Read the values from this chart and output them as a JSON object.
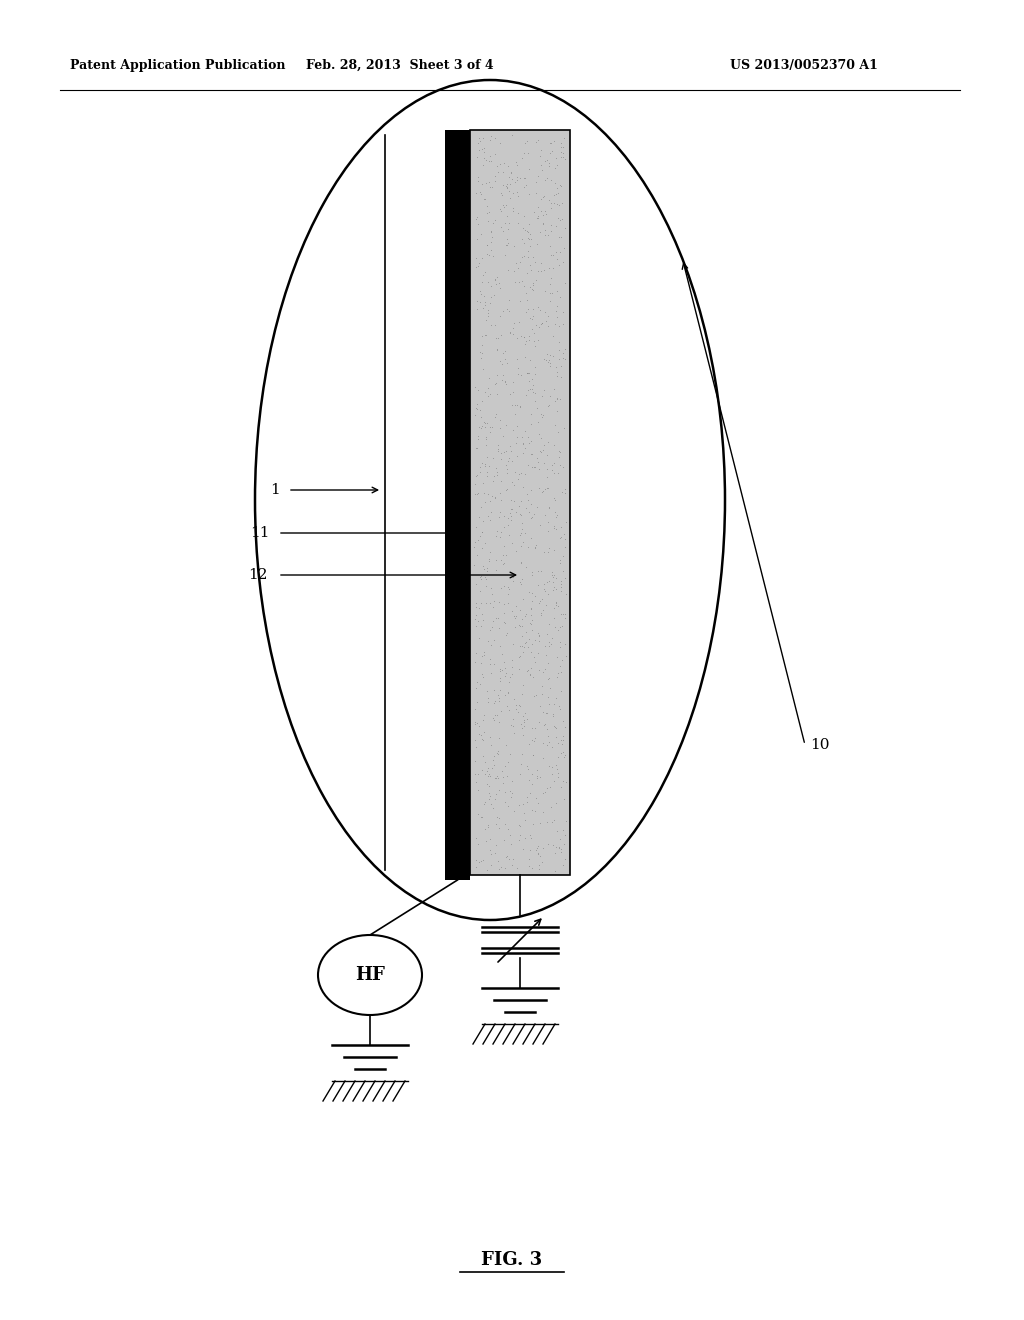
{
  "title_left": "Patent Application Publication",
  "title_center": "Feb. 28, 2013  Sheet 3 of 4",
  "title_right": "US 2013/0052370 A1",
  "fig_label": "FIG. 3",
  "bg_color": "#ffffff"
}
